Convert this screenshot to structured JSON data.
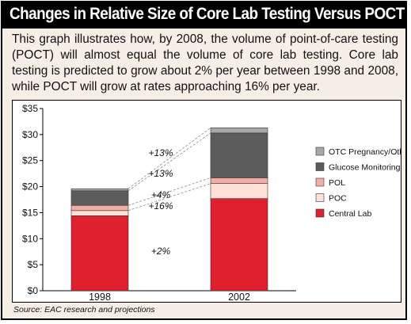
{
  "title": "Changes in Relative Size of Core Lab Testing Versus POCT",
  "description": "This graph illustrates how, by 2008, the volume of point-of-care testing (POCT) will almost equal the volume of core lab testing. Core lab testing is predicted to grow about 2% per year between 1998 and 2008, while POCT will grow at rates approaching 16% per year.",
  "source": "Source: EAC research and projections",
  "chart_data": {
    "type": "bar",
    "stacked": true,
    "categories": [
      "1998",
      "2002"
    ],
    "ylim": [
      0,
      35
    ],
    "yticks": [
      "$0",
      "$5",
      "$10",
      "$15",
      "$20",
      "$25",
      "$30",
      "$35"
    ],
    "grid": false,
    "legend_position": "right",
    "series": [
      {
        "name": "Central Lab",
        "color": "#e0202c",
        "values": [
          14.4,
          17.7
        ]
      },
      {
        "name": "POC",
        "color": "#fde0d6",
        "values": [
          1.0,
          2.9
        ]
      },
      {
        "name": "POL",
        "color": "#f4aca6",
        "values": [
          1.0,
          1.1
        ]
      },
      {
        "name": "Glucose Monitoring",
        "color": "#5c5c5c",
        "values": [
          2.8,
          8.6
        ]
      },
      {
        "name": "OTC Pregnancy/Other",
        "color": "#a8a8a8",
        "values": [
          0.4,
          1.0
        ]
      }
    ],
    "annotations": [
      "+13%",
      "+13%",
      "+4%",
      "+16%",
      "+2%"
    ]
  }
}
